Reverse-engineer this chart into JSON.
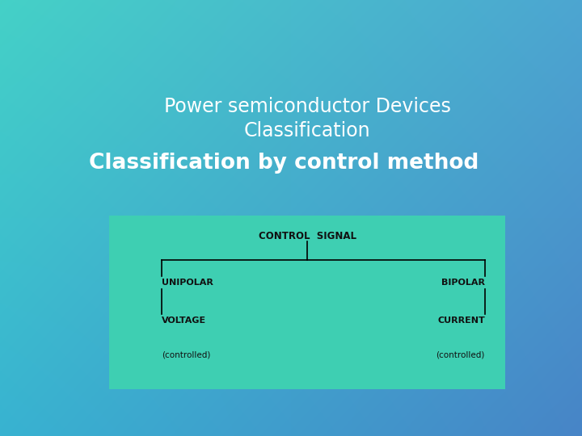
{
  "title_line1": "Power semiconductor Devices",
  "title_line2": "Classification",
  "subtitle": "Classification by control method",
  "title_color": "#ffffff",
  "subtitle_color": "#ffffff",
  "diagram_bg": "#3ecfb2",
  "diagram_text_color": "#111111",
  "root_label": "CONTROL  SIGNAL",
  "left_label": "UNIPOLAR",
  "right_label": "BIPOLAR",
  "left_sub_label": "VOLTAGE",
  "right_sub_label": "CURRENT",
  "left_sub2_label": "(controlled)",
  "right_sub2_label": "(controlled)",
  "bg_tl": [
    0.27,
    0.82,
    0.78
  ],
  "bg_tr": [
    0.3,
    0.65,
    0.82
  ],
  "bg_bl": [
    0.22,
    0.7,
    0.82
  ],
  "bg_br": [
    0.28,
    0.52,
    0.78
  ]
}
